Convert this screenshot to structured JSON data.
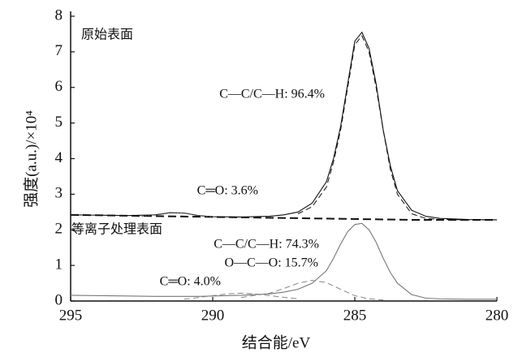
{
  "chart_data": {
    "type": "line",
    "x_label": "结合能/eV",
    "y_label": "强度(a.u.)/×10⁴",
    "xlim": [
      295,
      280
    ],
    "xticks": [
      295,
      290,
      285,
      280
    ],
    "ylim": [
      0,
      8
    ],
    "yticks": [
      0,
      1,
      2,
      3,
      4,
      5,
      6,
      7,
      8
    ],
    "annotations": [
      "原始表面",
      "C—C/C—H: 96.4%",
      "C═O: 3.6%",
      "等离子处理表面",
      "C—C/C—H: 74.3%",
      "O—C—O: 15.7%",
      "C═O: 4.0%"
    ],
    "series": [
      {
        "color": "#111111",
        "dash": "solid",
        "x": [
          295,
          294,
          293,
          292,
          291.5,
          291,
          290.5,
          290,
          289,
          288,
          287.5,
          287,
          286.5,
          286,
          285.75,
          285.5,
          285.25,
          285,
          284.75,
          284.5,
          284.25,
          284,
          283.75,
          283.5,
          283,
          282.5,
          282,
          281,
          280
        ],
        "values": [
          2.42,
          2.41,
          2.4,
          2.42,
          2.48,
          2.47,
          2.4,
          2.37,
          2.36,
          2.38,
          2.42,
          2.5,
          2.75,
          3.35,
          4.0,
          4.9,
          6.1,
          7.3,
          7.55,
          7.1,
          6.1,
          4.8,
          3.8,
          3.1,
          2.55,
          2.38,
          2.32,
          2.29,
          2.28
        ]
      },
      {
        "color": "#111111",
        "dash": "dashed",
        "x": [
          287,
          286.5,
          286,
          285.75,
          285.5,
          285.25,
          285,
          284.75,
          284.5,
          284.25,
          284,
          283.75,
          283.5,
          283,
          282.5,
          282,
          281,
          280
        ],
        "values": [
          2.45,
          2.65,
          3.2,
          3.9,
          4.8,
          6.0,
          7.2,
          7.45,
          7.0,
          6.0,
          4.8,
          3.7,
          3.0,
          2.45,
          2.32,
          2.29,
          2.28,
          2.28
        ]
      },
      {
        "color": "#111111",
        "dash": "thick",
        "x": [
          295,
          283,
          280
        ],
        "values": [
          2.42,
          2.28,
          2.28
        ]
      },
      {
        "color": "#555555",
        "dash": "dotted",
        "x": [
          292.5,
          292,
          291.5,
          291,
          290.5,
          290
        ],
        "values": [
          2.38,
          2.43,
          2.48,
          2.47,
          2.4,
          2.36
        ]
      },
      {
        "color": "#777777",
        "dash": "solid",
        "x": [
          295,
          294,
          293,
          292,
          291.5,
          291,
          290.5,
          290,
          289,
          288,
          287.5,
          287,
          286.5,
          286,
          285.75,
          285.5,
          285.25,
          285,
          284.75,
          284.5,
          284.25,
          284,
          283.75,
          283.5,
          283,
          282.5,
          282,
          281,
          280
        ],
        "values": [
          0.16,
          0.15,
          0.14,
          0.13,
          0.13,
          0.13,
          0.13,
          0.14,
          0.16,
          0.2,
          0.25,
          0.33,
          0.5,
          0.85,
          1.2,
          1.6,
          1.95,
          2.15,
          2.18,
          2.0,
          1.65,
          1.2,
          0.8,
          0.5,
          0.18,
          0.08,
          0.06,
          0.05,
          0.05
        ]
      },
      {
        "color": "#888888",
        "dash": "dashed",
        "x": [
          289,
          288,
          287.5,
          287,
          286.5,
          286,
          285.5,
          285,
          284.5,
          284
        ],
        "values": [
          0.1,
          0.22,
          0.35,
          0.5,
          0.58,
          0.52,
          0.33,
          0.15,
          0.06,
          0.03
        ]
      },
      {
        "color": "#888888",
        "dash": "dashed",
        "x": [
          291,
          290,
          289.5,
          289,
          288.5,
          288,
          287
        ],
        "values": [
          0.05,
          0.15,
          0.2,
          0.22,
          0.2,
          0.15,
          0.06
        ]
      }
    ]
  }
}
